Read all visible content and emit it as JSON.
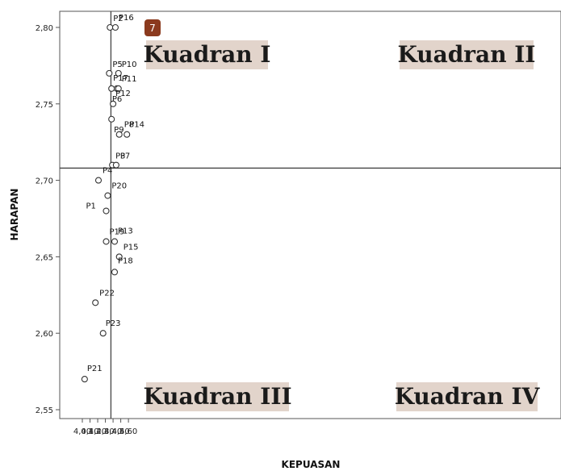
{
  "badge": {
    "number": "7",
    "color": "#8b3a1e"
  },
  "quadrant_label_background": "#e2d4cb",
  "chart_data": {
    "type": "scatter",
    "xlabel": "KEPUASAN",
    "ylabel": "HARAPAN",
    "xlim": [
      3.95,
      4.62
    ],
    "ylim": [
      2.545,
      2.815
    ],
    "x_ticks": [
      {
        "value": 4.0,
        "label": "4,00"
      },
      {
        "value": 4.1,
        "label": "4,10"
      },
      {
        "value": 4.2,
        "label": "4,20"
      },
      {
        "value": 4.3,
        "label": "4,30"
      },
      {
        "value": 4.4,
        "label": "4,40"
      },
      {
        "value": 4.5,
        "label": "4,50"
      },
      {
        "value": 4.6,
        "label": "4,60"
      }
    ],
    "y_ticks": [
      {
        "value": 2.55,
        "label": "2,55"
      },
      {
        "value": 2.6,
        "label": "2,60"
      },
      {
        "value": 2.65,
        "label": "2,65"
      },
      {
        "value": 2.7,
        "label": "2,70"
      },
      {
        "value": 2.75,
        "label": "2,75"
      },
      {
        "value": 2.8,
        "label": "2,80"
      }
    ],
    "reference_lines": {
      "x": 4.372,
      "y": 2.708
    },
    "grid": false,
    "quadrants": [
      {
        "label": "Kuadran I",
        "position": "top-left"
      },
      {
        "label": "Kuadran II",
        "position": "top-right"
      },
      {
        "label": "Kuadran III",
        "position": "bottom-left"
      },
      {
        "label": "Kuadran IV",
        "position": "bottom-right"
      }
    ],
    "points": [
      {
        "label": "P1",
        "x": 4.31,
        "y": 2.68
      },
      {
        "label": "P2",
        "x": 4.36,
        "y": 2.8
      },
      {
        "label": "P3",
        "x": 4.39,
        "y": 2.71
      },
      {
        "label": "P4",
        "x": 4.21,
        "y": 2.7
      },
      {
        "label": "P5",
        "x": 4.35,
        "y": 2.77
      },
      {
        "label": "P6",
        "x": 4.45,
        "y": 2.76
      },
      {
        "label": "P7",
        "x": 4.44,
        "y": 2.71
      },
      {
        "label": "P8",
        "x": 4.48,
        "y": 2.73
      },
      {
        "label": "P9",
        "x": 4.38,
        "y": 2.74
      },
      {
        "label": "P10",
        "x": 4.47,
        "y": 2.77
      },
      {
        "label": "P11",
        "x": 4.47,
        "y": 2.76
      },
      {
        "label": "P12",
        "x": 4.4,
        "y": 2.75
      },
      {
        "label": "P13",
        "x": 4.42,
        "y": 2.66
      },
      {
        "label": "P14",
        "x": 4.58,
        "y": 2.73
      },
      {
        "label": "P15",
        "x": 4.48,
        "y": 2.65
      },
      {
        "label": "P16",
        "x": 4.43,
        "y": 2.8
      },
      {
        "label": "P17",
        "x": 4.38,
        "y": 2.76
      },
      {
        "label": "P18",
        "x": 4.42,
        "y": 2.64
      },
      {
        "label": "P19",
        "x": 4.31,
        "y": 2.66
      },
      {
        "label": "P20",
        "x": 4.33,
        "y": 2.69
      },
      {
        "label": "P21",
        "x": 4.03,
        "y": 2.57
      },
      {
        "label": "P22",
        "x": 4.17,
        "y": 2.62
      },
      {
        "label": "P23",
        "x": 4.27,
        "y": 2.6
      }
    ]
  }
}
